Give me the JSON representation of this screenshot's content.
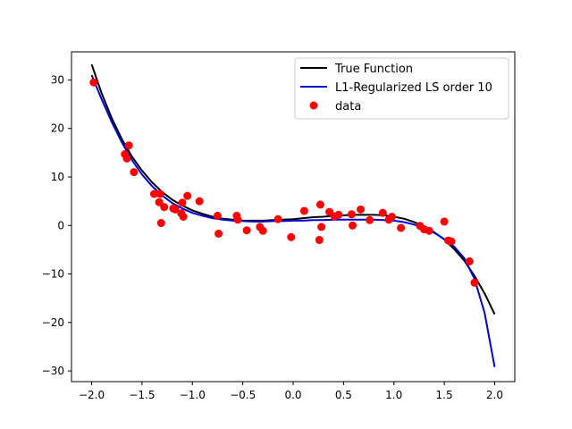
{
  "chart_data": {
    "type": "scatter",
    "title": "",
    "xlabel": "",
    "ylabel": "",
    "xlim": [
      -2.2,
      2.2
    ],
    "ylim": [
      -32.2,
      35.8
    ],
    "grid": false,
    "legend_position": "top-right",
    "x_ticks": [
      -2.0,
      -1.5,
      -1.0,
      -0.5,
      0.0,
      0.5,
      1.0,
      1.5,
      2.0
    ],
    "x_tick_labels": [
      "−2.0",
      "−1.5",
      "−1.0",
      "−0.5",
      "0.0",
      "0.5",
      "1.0",
      "1.5",
      "2.0"
    ],
    "y_ticks": [
      -30,
      -20,
      -10,
      0,
      10,
      20,
      30
    ],
    "y_tick_labels": [
      "−30",
      "−20",
      "−10",
      "0",
      "10",
      "20",
      "30"
    ],
    "series": [
      {
        "name": "True Function",
        "kind": "line",
        "color": "#000000",
        "x": [
          -2.0,
          -1.9,
          -1.8,
          -1.7,
          -1.6,
          -1.5,
          -1.4,
          -1.3,
          -1.2,
          -1.1,
          -1.0,
          -0.9,
          -0.8,
          -0.7,
          -0.6,
          -0.5,
          -0.4,
          -0.3,
          -0.2,
          -0.1,
          0.0,
          0.1,
          0.2,
          0.3,
          0.4,
          0.5,
          0.6,
          0.7,
          0.8,
          0.9,
          1.0,
          1.1,
          1.2,
          1.3,
          1.4,
          1.5,
          1.6,
          1.7,
          1.8,
          1.9,
          2.0
        ],
        "y": [
          33.2,
          27.2,
          22.1,
          17.8,
          14.2,
          11.3,
          8.9,
          6.9,
          5.3,
          4.1,
          3.1,
          2.4,
          1.8,
          1.4,
          1.2,
          1.0,
          1.0,
          1.0,
          1.1,
          1.2,
          1.3,
          1.5,
          1.7,
          1.8,
          2.0,
          2.1,
          2.2,
          2.2,
          2.2,
          2.1,
          1.8,
          1.4,
          0.7,
          -0.2,
          -1.4,
          -2.9,
          -4.9,
          -7.3,
          -10.4,
          -14.0,
          -18.3
        ]
      },
      {
        "name": "L1-Regularized LS order 10",
        "kind": "line",
        "color": "#0000cc",
        "x": [
          -2.0,
          -1.9,
          -1.8,
          -1.7,
          -1.6,
          -1.5,
          -1.4,
          -1.3,
          -1.2,
          -1.1,
          -1.0,
          -0.9,
          -0.8,
          -0.7,
          -0.6,
          -0.5,
          -0.4,
          -0.3,
          -0.2,
          -0.1,
          0.0,
          0.1,
          0.2,
          0.3,
          0.4,
          0.5,
          0.6,
          0.7,
          0.8,
          0.9,
          1.0,
          1.1,
          1.2,
          1.3,
          1.4,
          1.5,
          1.6,
          1.7,
          1.8,
          1.9,
          2.0
        ],
        "y": [
          31.0,
          26.0,
          21.3,
          17.1,
          13.5,
          10.5,
          8.1,
          6.2,
          4.6,
          3.5,
          2.6,
          2.0,
          1.5,
          1.2,
          1.0,
          0.9,
          0.8,
          0.8,
          0.9,
          0.9,
          1.0,
          1.0,
          1.1,
          1.1,
          1.2,
          1.2,
          1.2,
          1.2,
          1.2,
          1.1,
          1.0,
          0.7,
          0.2,
          -0.6,
          -1.5,
          -2.8,
          -4.4,
          -6.8,
          -11.0,
          -18.0,
          -29.2
        ]
      },
      {
        "name": "data",
        "kind": "scatter",
        "color": "#ff0000",
        "x": [
          -1.98,
          -1.67,
          -1.65,
          -1.63,
          -1.58,
          -1.38,
          -1.33,
          -1.32,
          -1.31,
          -1.28,
          -1.19,
          -1.17,
          -1.11,
          -1.1,
          -1.09,
          -1.05,
          -0.93,
          -0.75,
          -0.74,
          -0.56,
          -0.55,
          -0.46,
          -0.33,
          -0.3,
          -0.15,
          -0.02,
          0.11,
          0.26,
          0.27,
          0.28,
          0.36,
          0.41,
          0.45,
          0.58,
          0.59,
          0.67,
          0.76,
          0.89,
          0.95,
          0.98,
          1.07,
          1.26,
          1.3,
          1.35,
          1.5,
          1.54,
          1.57,
          1.75,
          1.8
        ],
        "y": [
          29.5,
          14.7,
          13.8,
          16.5,
          11.0,
          6.5,
          4.8,
          6.5,
          0.5,
          3.8,
          3.5,
          3.3,
          2.5,
          4.7,
          1.8,
          6.1,
          5.0,
          2.0,
          -1.7,
          2.0,
          1.2,
          -1.0,
          -0.3,
          -1.1,
          1.3,
          -2.4,
          3.0,
          -3.0,
          4.3,
          -0.3,
          2.8,
          1.9,
          2.2,
          2.3,
          0.0,
          3.3,
          1.1,
          2.6,
          1.2,
          1.8,
          -0.5,
          -0.1,
          -0.8,
          -1.1,
          0.8,
          -3.1,
          -3.3,
          -7.4,
          -11.8
        ]
      }
    ]
  }
}
